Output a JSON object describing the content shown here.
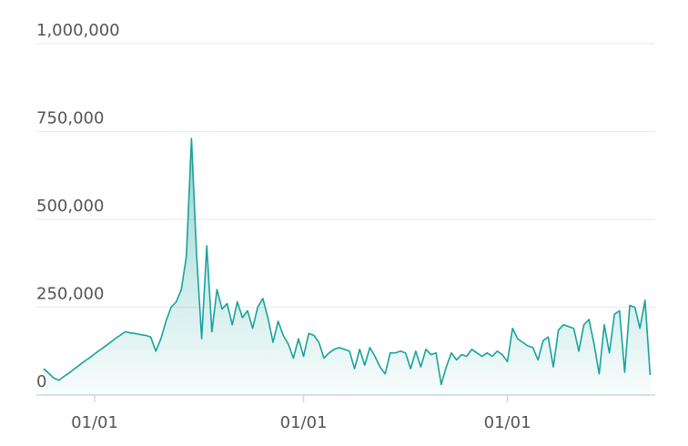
{
  "chart_data": {
    "type": "area",
    "categories": [
      null,
      null,
      null,
      null,
      null,
      null,
      null,
      null,
      null,
      null,
      "01/01",
      null,
      null,
      null,
      null,
      null,
      null,
      null,
      null,
      null,
      null,
      null,
      null,
      null,
      null,
      null,
      null,
      null,
      null,
      null,
      null,
      null,
      null,
      null,
      null,
      null,
      null,
      null,
      null,
      null,
      null,
      null,
      null,
      null,
      null,
      null,
      null,
      null,
      null,
      null,
      null,
      "01/01",
      null,
      null,
      null,
      null,
      null,
      null,
      null,
      null,
      null,
      null,
      null,
      null,
      null,
      null,
      null,
      null,
      null,
      null,
      null,
      null,
      null,
      null,
      null,
      null,
      null,
      null,
      null,
      null,
      null,
      null,
      null,
      null,
      null,
      null,
      null,
      null,
      null,
      null,
      null,
      "01/01",
      null,
      null,
      null,
      null,
      null,
      null,
      null,
      null,
      null,
      null,
      null,
      null,
      null,
      null,
      null,
      null,
      null,
      null,
      null,
      null,
      null,
      null,
      null,
      null,
      null,
      null,
      null,
      null
    ],
    "series": [
      {
        "color": "#17a39b",
        "values": [
          75000,
          62000,
          48000,
          42000,
          53000,
          63000,
          74000,
          85000,
          96000,
          106000,
          117000,
          128000,
          138000,
          149000,
          160000,
          170000,
          180000,
          177000,
          175000,
          172000,
          170000,
          165000,
          125000,
          160000,
          210000,
          250000,
          265000,
          300000,
          395000,
          730000,
          400000,
          160000,
          425000,
          180000,
          300000,
          245000,
          260000,
          200000,
          265000,
          220000,
          240000,
          190000,
          250000,
          275000,
          220000,
          150000,
          210000,
          170000,
          145000,
          105000,
          160000,
          110000,
          175000,
          170000,
          150000,
          105000,
          120000,
          130000,
          135000,
          130000,
          125000,
          75000,
          130000,
          85000,
          135000,
          110000,
          80000,
          60000,
          120000,
          120000,
          125000,
          120000,
          75000,
          125000,
          80000,
          130000,
          115000,
          120000,
          30000,
          80000,
          120000,
          100000,
          115000,
          110000,
          130000,
          120000,
          110000,
          120000,
          110000,
          125000,
          115000,
          95000,
          190000,
          160000,
          150000,
          140000,
          135000,
          100000,
          155000,
          165000,
          80000,
          185000,
          200000,
          195000,
          190000,
          125000,
          200000,
          215000,
          145000,
          60000,
          200000,
          120000,
          230000,
          240000,
          65000,
          255000,
          250000,
          190000,
          270000,
          57000
        ]
      }
    ],
    "ylim": [
      0,
      1000000
    ],
    "yticks": [
      0,
      {
        "value": 250000,
        "label": "250,000"
      },
      {
        "value": 500000,
        "label": "500,000"
      },
      {
        "value": 750000,
        "label": "750,000"
      },
      {
        "value": 1000000,
        "label": "1,000,000"
      }
    ],
    "grid": true
  }
}
